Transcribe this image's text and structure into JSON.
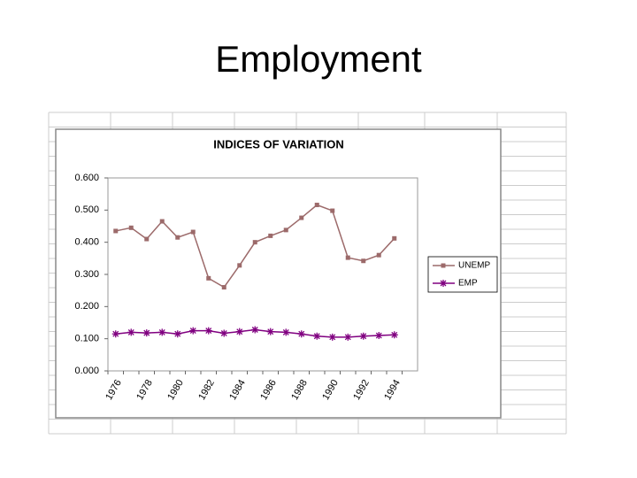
{
  "title": "Employment",
  "chart_data": {
    "type": "line",
    "title": "INDICES OF VARIATION",
    "categories": [
      1976,
      null,
      1978,
      null,
      1980,
      null,
      1982,
      null,
      1984,
      null,
      1986,
      null,
      1988,
      null,
      1990,
      null,
      1992,
      null,
      1994,
      null
    ],
    "series": [
      {
        "name": "UNEMP",
        "color": "#9c6a6a",
        "marker": "square",
        "values": [
          0.435,
          0.445,
          0.41,
          0.465,
          0.415,
          0.432,
          0.288,
          0.26,
          0.328,
          0.4,
          0.42,
          0.438,
          0.476,
          0.516,
          0.498,
          0.352,
          0.342,
          0.36,
          0.412,
          null
        ]
      },
      {
        "name": "EMP",
        "color": "#800080",
        "marker": "star",
        "values": [
          0.115,
          0.12,
          0.118,
          0.12,
          0.115,
          0.125,
          0.125,
          0.117,
          0.122,
          0.128,
          0.122,
          0.12,
          0.115,
          0.108,
          0.105,
          0.105,
          0.108,
          0.11,
          0.112,
          null
        ]
      }
    ],
    "ylim": [
      0,
      0.6
    ],
    "yticks": [
      {
        "value": 0,
        "label": "0.000"
      },
      {
        "value": 0.1,
        "label": "0.100"
      },
      {
        "value": 0.2,
        "label": "0.200"
      },
      {
        "value": 0.3,
        "label": "0.300"
      },
      {
        "value": 0.4,
        "label": "0.400"
      },
      {
        "value": 0.5,
        "label": "0.500"
      },
      {
        "value": 0.6,
        "label": "0.600"
      }
    ],
    "legend": "right"
  }
}
